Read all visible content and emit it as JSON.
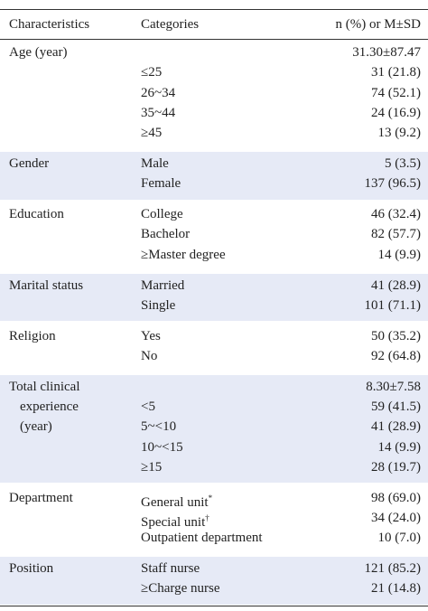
{
  "header": {
    "characteristics": "Characteristics",
    "categories": "Categories",
    "value": "n (%) or M±SD"
  },
  "groups": [
    {
      "label_lines": [
        "Age (year)"
      ],
      "rows": [
        {
          "category": null,
          "value": "31.30±87.47"
        },
        {
          "category": "≤25",
          "value": "31 (21.8)"
        },
        {
          "category": "26~34",
          "value": "74 (52.1)"
        },
        {
          "category": "35~44",
          "value": "24 (16.9)"
        },
        {
          "category": "≥45",
          "value": "13 (9.2)"
        }
      ]
    },
    {
      "label_lines": [
        "Gender"
      ],
      "rows": [
        {
          "category": "Male",
          "value": "5 (3.5)"
        },
        {
          "category": "Female",
          "value": "137 (96.5)"
        }
      ]
    },
    {
      "label_lines": [
        "Education"
      ],
      "rows": [
        {
          "category": "College",
          "value": "46 (32.4)"
        },
        {
          "category": "Bachelor",
          "value": "82 (57.7)"
        },
        {
          "category": "≥Master degree",
          "value": "14 (9.9)"
        }
      ]
    },
    {
      "label_lines": [
        "Marital status"
      ],
      "rows": [
        {
          "category": "Married",
          "value": "41 (28.9)"
        },
        {
          "category": "Single",
          "value": "101 (71.1)"
        }
      ]
    },
    {
      "label_lines": [
        "Religion"
      ],
      "rows": [
        {
          "category": "Yes",
          "value": "50 (35.2)"
        },
        {
          "category": "No",
          "value": "92 (64.8)"
        }
      ]
    },
    {
      "label_lines": [
        "Total clinical",
        "experience",
        "(year)"
      ],
      "rows": [
        {
          "category": null,
          "value": "8.30±7.58"
        },
        {
          "category": "<5",
          "value": "59 (41.5)"
        },
        {
          "category": "5~<10",
          "value": "41 (28.9)"
        },
        {
          "category": "10~<15",
          "value": "14 (9.9)"
        },
        {
          "category": "≥15",
          "value": "28 (19.7)"
        }
      ]
    },
    {
      "label_lines": [
        "Department"
      ],
      "rows": [
        {
          "category": "General unit",
          "note": "*",
          "value": "98 (69.0)"
        },
        {
          "category": "Special unit",
          "note": "†",
          "value": "34 (24.0)"
        },
        {
          "category": "Outpatient department",
          "value": "10 (7.0)"
        }
      ]
    },
    {
      "label_lines": [
        "Position"
      ],
      "rows": [
        {
          "category": "Staff nurse",
          "value": "121 (85.2)"
        },
        {
          "category": "≥Charge nurse",
          "value": "21 (14.8)"
        }
      ]
    }
  ]
}
